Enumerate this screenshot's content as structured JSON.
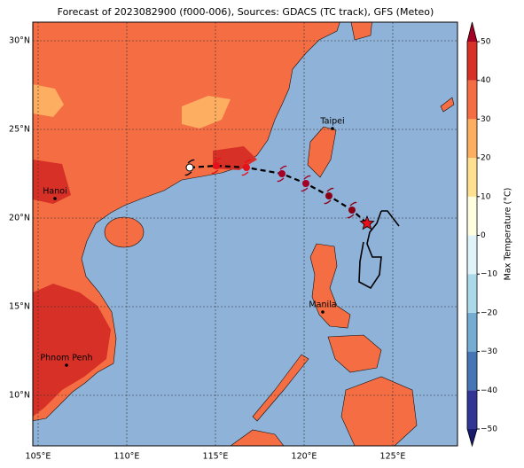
{
  "title": "Forecast of 2023082900 (f000-006), Sources: GDACS (TC track), GFS (Meteo)",
  "map": {
    "xlim": [
      104.7,
      128.65
    ],
    "ylim": [
      7.15,
      31.05
    ],
    "xticks": [
      {
        "value": 105,
        "label": "105°E"
      },
      {
        "value": 110,
        "label": "110°E"
      },
      {
        "value": 115,
        "label": "115°E"
      },
      {
        "value": 120,
        "label": "120°E"
      },
      {
        "value": 125,
        "label": "125°E"
      }
    ],
    "yticks": [
      {
        "value": 10,
        "label": "10°N"
      },
      {
        "value": 15,
        "label": "15°N"
      },
      {
        "value": 20,
        "label": "20°N"
      },
      {
        "value": 25,
        "label": "25°N"
      },
      {
        "value": 30,
        "label": "30°N"
      }
    ],
    "cities": [
      {
        "name": "Taipei",
        "lon": 121.6,
        "lat": 25.05
      },
      {
        "name": "Hanoi",
        "lon": 105.95,
        "lat": 21.1
      },
      {
        "name": "Manila",
        "lon": 121.05,
        "lat": 14.7
      },
      {
        "name": "Phnom Penh",
        "lon": 106.6,
        "lat": 11.7
      }
    ],
    "track": {
      "lon": [
        113.55,
        115.05,
        116.75,
        118.75,
        120.1,
        121.4,
        122.7
      ],
      "lat": [
        22.85,
        22.95,
        22.85,
        22.5,
        21.95,
        21.25,
        20.45
      ]
    },
    "current": {
      "lon": 123.55,
      "lat": 19.7
    }
  },
  "colorbar": {
    "label": "Max Temperature (°C)",
    "lim": [
      -50,
      50
    ],
    "ticks": [
      {
        "value": -50,
        "label": "−50"
      },
      {
        "value": -40,
        "label": "−40"
      },
      {
        "value": -30,
        "label": "−30"
      },
      {
        "value": -20,
        "label": "−20"
      },
      {
        "value": -10,
        "label": "−10"
      },
      0,
      10,
      20,
      30,
      40,
      50
    ],
    "colors": [
      "#313695",
      "#4575b4",
      "#74add1",
      "#abd9e9",
      "#e0f3f8",
      "#ffffe0",
      "#fee090",
      "#fdae61",
      "#f46d43",
      "#d73027"
    ],
    "under": "#1a1a6e",
    "over": "#a50026"
  }
}
